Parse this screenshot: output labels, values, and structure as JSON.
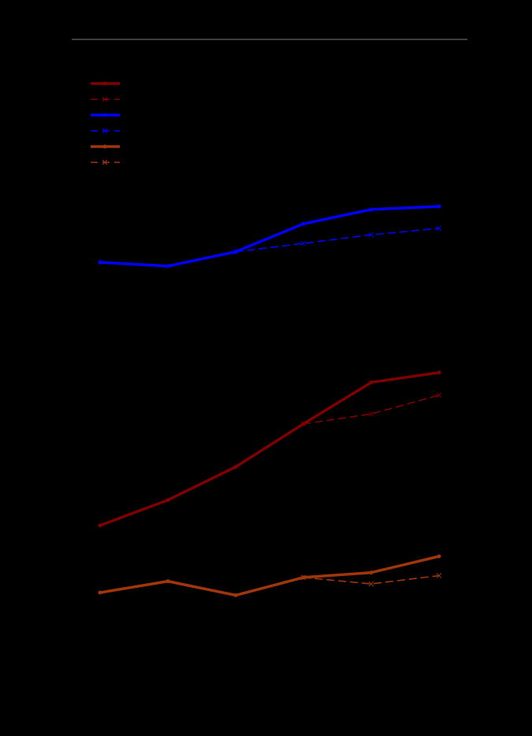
{
  "chart_data": {
    "type": "line",
    "title": "",
    "xlabel": "",
    "ylabel": "",
    "x": [
      1,
      2,
      3,
      4,
      5,
      6
    ],
    "xlim": [
      0.6,
      6.4
    ],
    "ylim": [
      0,
      100
    ],
    "grid": false,
    "legend_position": "top-left",
    "series": [
      {
        "id": "s1",
        "color": "#800000",
        "dash": "solid",
        "marker": "dot",
        "values": [
          34.8,
          41.5,
          50.3,
          61.7,
          72.7,
          75.3
        ]
      },
      {
        "id": "s2",
        "color": "#800000",
        "dash": "dashed",
        "marker": "x",
        "values": [
          null,
          null,
          null,
          61.7,
          64.3,
          69.3
        ]
      },
      {
        "id": "s3",
        "color": "#0000ff",
        "dash": "solid",
        "marker": "dot",
        "values": [
          104.5,
          103.5,
          107.3,
          114.7,
          118.5,
          119.3
        ]
      },
      {
        "id": "s4",
        "color": "#0000ff",
        "dash": "dashed",
        "marker": "x",
        "values": [
          null,
          null,
          107.3,
          109.5,
          111.8,
          113.5
        ]
      },
      {
        "id": "s5",
        "color": "#a0360a",
        "dash": "solid",
        "marker": "dot",
        "values": [
          17.0,
          20.0,
          16.3,
          21.0,
          22.3,
          26.6
        ]
      },
      {
        "id": "s6",
        "color": "#a0360a",
        "dash": "dashed",
        "marker": "x",
        "values": [
          null,
          null,
          null,
          21.0,
          19.3,
          21.5
        ]
      }
    ]
  }
}
